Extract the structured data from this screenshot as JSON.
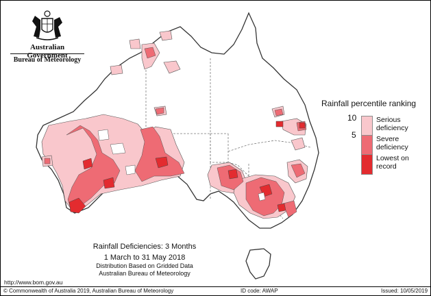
{
  "header": {
    "org_name": "Australian Government",
    "org_unit": "Bureau of Meteorology"
  },
  "legend": {
    "title": "Rainfall percentile ranking",
    "ticks": [
      "10",
      "5"
    ],
    "categories": [
      {
        "line1": "Serious",
        "line2": "deficiency",
        "color": "#f9c7cc"
      },
      {
        "line1": "Severe",
        "line2": "deficiency",
        "color": "#ee6b74"
      },
      {
        "line1": "Lowest on",
        "line2": "record",
        "color": "#e32b2f"
      }
    ]
  },
  "caption": {
    "title": "Rainfall Deficiencies: 3 Months",
    "dates": "1 March to 31 May 2018",
    "line3": "Distribution Based on Gridded Data",
    "line4": "Australian Bureau of Meteorology"
  },
  "footer": {
    "url": "http://www.bom.gov.au",
    "copyright": "© Commonwealth of Australia 2019, Australian Bureau of Meteorology",
    "id_code": "ID code: AWAP",
    "issued": "Issued: 10/05/2019"
  },
  "map": {
    "border_color": "#7a7a7a",
    "land_color": "#ffffff"
  }
}
